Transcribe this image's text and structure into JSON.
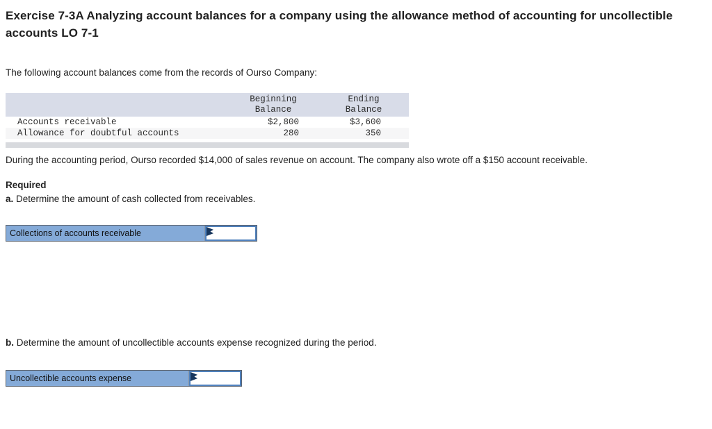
{
  "page": {
    "title": "Exercise 7-3A Analyzing account balances for a company using the allowance method of accounting for uncollectible accounts LO 7-1",
    "intro": "The following account balances come from the records of Ourso Company:",
    "paragraph": "During the accounting period, Ourso recorded $14,000 of sales revenue on account. The company also wrote off a $150 account receivable.",
    "required_label": "Required",
    "part_a": {
      "letter": "a.",
      "text": " Determine the amount of cash collected from receivables."
    },
    "part_b": {
      "letter": "b.",
      "text": " Determine the amount of uncollectible accounts expense recognized during the period."
    }
  },
  "table": {
    "columns": [
      "",
      "Beginning Balance",
      "Ending Balance"
    ],
    "rows": [
      {
        "label": "Accounts receivable",
        "beginning": "$2,800",
        "ending": "$3,600"
      },
      {
        "label": "Allowance for doubtful accounts",
        "beginning": "280",
        "ending": "350"
      }
    ]
  },
  "inputs": {
    "a": {
      "label": "Collections of accounts receivable",
      "value": ""
    },
    "b": {
      "label": "Uncollectible accounts expense",
      "value": ""
    }
  },
  "colors": {
    "label-blue": "#84aad8",
    "input-border": "#4f81bd",
    "flag-navy": "#17365d",
    "table-header-bg": "#d8dce8",
    "table-alt-bg": "#f6f6f7",
    "stripe-gray": "#d8dade",
    "control-border": "#5d6570",
    "text-dark": "#212121"
  }
}
